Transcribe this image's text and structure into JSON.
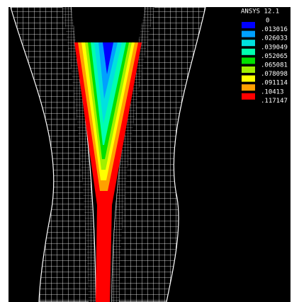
{
  "header": {
    "title": "ANSYS 12.1"
  },
  "legend": {
    "labels": [
      "0",
      ".013016",
      ".026033",
      ".039049",
      ".052065",
      ".065081",
      ".078098",
      ".091114",
      ".10413",
      ".117147"
    ],
    "colors": [
      "#0000ff",
      "#00a0ff",
      "#00e0e0",
      "#00ffb0",
      "#00e000",
      "#a0f000",
      "#ffff00",
      "#ffa000",
      "#ff0000"
    ]
  }
}
